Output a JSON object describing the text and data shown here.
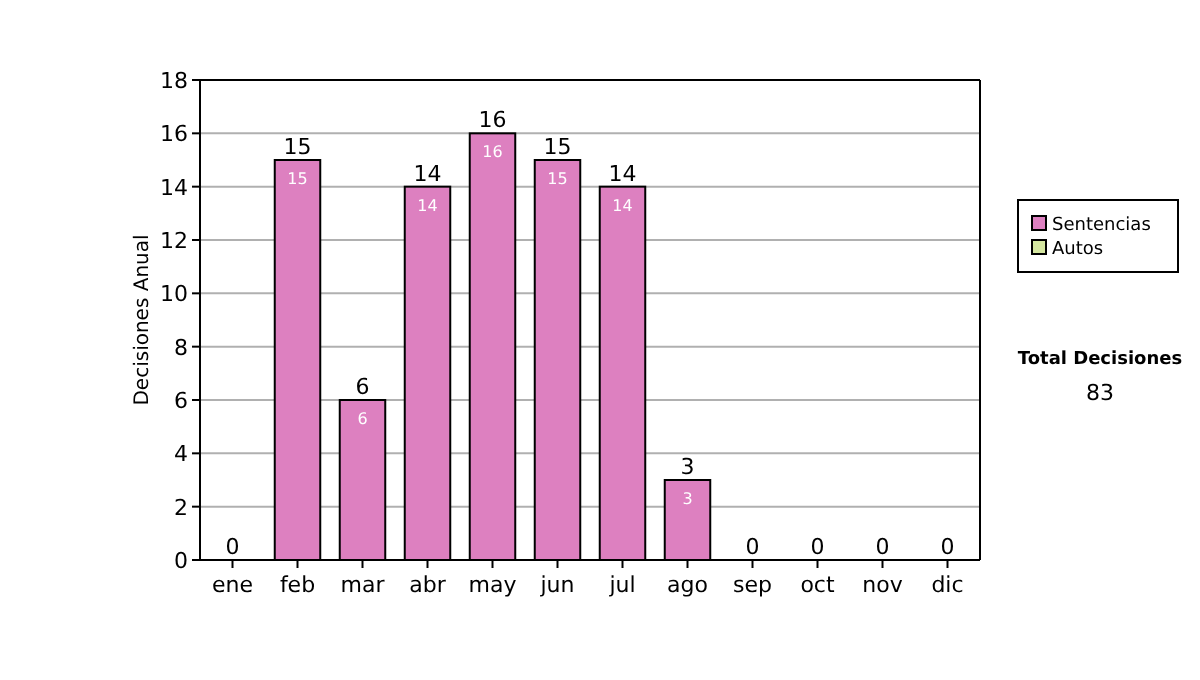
{
  "chart_data": {
    "type": "bar",
    "ylabel": "Decisiones Anual",
    "stacked": true,
    "categories": [
      "ene",
      "feb",
      "mar",
      "abr",
      "may",
      "jun",
      "jul",
      "ago",
      "sep",
      "oct",
      "nov",
      "dic"
    ],
    "series": [
      {
        "name": "Sentencias",
        "color": "#dd80c0",
        "values": [
          0,
          15,
          6,
          14,
          16,
          15,
          14,
          3,
          0,
          0,
          0,
          0
        ],
        "value_labels": [
          null,
          "15",
          "6",
          "14",
          "16",
          "15",
          "14",
          "3",
          null,
          null,
          null,
          null
        ]
      },
      {
        "name": "Autos",
        "color": "#d4e6a0",
        "values": [
          0,
          0,
          0,
          0,
          0,
          0,
          0,
          0,
          0,
          0,
          0,
          0
        ]
      }
    ],
    "totals": [
      "0",
      "15",
      "6",
      "14",
      "16",
      "15",
      "14",
      "3",
      "0",
      "0",
      "0",
      "0"
    ],
    "ylim": [
      0,
      18
    ],
    "yticks": [
      0,
      2,
      4,
      6,
      8,
      10,
      12,
      14,
      16,
      18
    ],
    "grid": "y",
    "legend": "right",
    "annotations": [
      "Total Decisiones",
      "83"
    ]
  }
}
